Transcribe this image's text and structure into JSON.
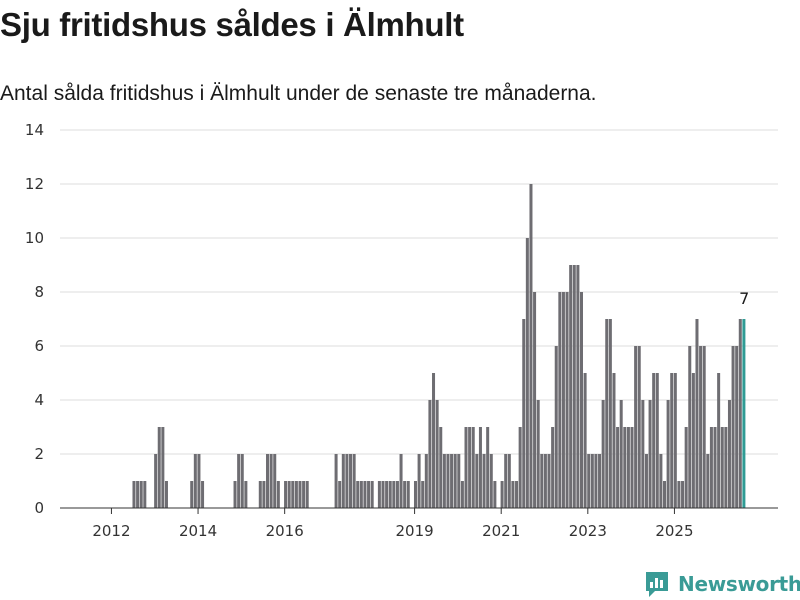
{
  "title": "Sju fritidshus såldes i Älmhult",
  "subtitle": "Antal sålda fritidshus i Älmhult under de senaste tre månaderna.",
  "brand": "Newsworthy",
  "colors": {
    "bar": "#6e6d72",
    "highlight": "#2f9b94",
    "grid": "#dcdcdc",
    "brand": "#3a9b96"
  },
  "chart_data": {
    "type": "bar",
    "title": "Sju fritidshus såldes i Älmhult",
    "subtitle": "Antal sålda fritidshus i Älmhult under de senaste tre månaderna.",
    "xlabel": "",
    "ylabel": "",
    "ylim": [
      0,
      14
    ],
    "yticks": [
      0,
      2,
      4,
      6,
      8,
      10,
      12,
      14
    ],
    "grid": true,
    "x_start": "2011-09",
    "x_tick_labels": [
      "2012",
      "2014",
      "2016",
      "2019",
      "2021",
      "2023",
      "2025"
    ],
    "x_tick_dates": [
      "2012-01",
      "2014-01",
      "2016-01",
      "2019-01",
      "2021-01",
      "2023-01",
      "2025-01"
    ],
    "highlight_last": true,
    "last_value_label": "7",
    "values": [
      0,
      0,
      0,
      0,
      0,
      0,
      0,
      0,
      0,
      1,
      1,
      1,
      1,
      0,
      0,
      2,
      3,
      3,
      1,
      0,
      0,
      0,
      0,
      0,
      0,
      1,
      2,
      2,
      1,
      0,
      0,
      0,
      0,
      0,
      0,
      0,
      0,
      1,
      2,
      2,
      1,
      0,
      0,
      0,
      1,
      1,
      2,
      2,
      2,
      1,
      0,
      1,
      1,
      1,
      1,
      1,
      1,
      1,
      0,
      0,
      0,
      0,
      0,
      0,
      0,
      2,
      1,
      2,
      2,
      2,
      2,
      1,
      1,
      1,
      1,
      1,
      0,
      1,
      1,
      1,
      1,
      1,
      1,
      2,
      1,
      1,
      0,
      1,
      2,
      1,
      2,
      4,
      5,
      4,
      3,
      2,
      2,
      2,
      2,
      2,
      1,
      3,
      3,
      3,
      2,
      3,
      2,
      3,
      2,
      1,
      0,
      1,
      2,
      2,
      1,
      1,
      3,
      7,
      10,
      12,
      8,
      4,
      2,
      2,
      2,
      3,
      6,
      8,
      8,
      8,
      9,
      9,
      9,
      8,
      5,
      2,
      2,
      2,
      2,
      4,
      7,
      7,
      5,
      3,
      4,
      3,
      3,
      3,
      6,
      6,
      4,
      2,
      4,
      5,
      5,
      2,
      1,
      4,
      5,
      5,
      1,
      1,
      3,
      6,
      5,
      7,
      6,
      6,
      2,
      3,
      3,
      5,
      3,
      3,
      4,
      6,
      6,
      7,
      7
    ]
  }
}
